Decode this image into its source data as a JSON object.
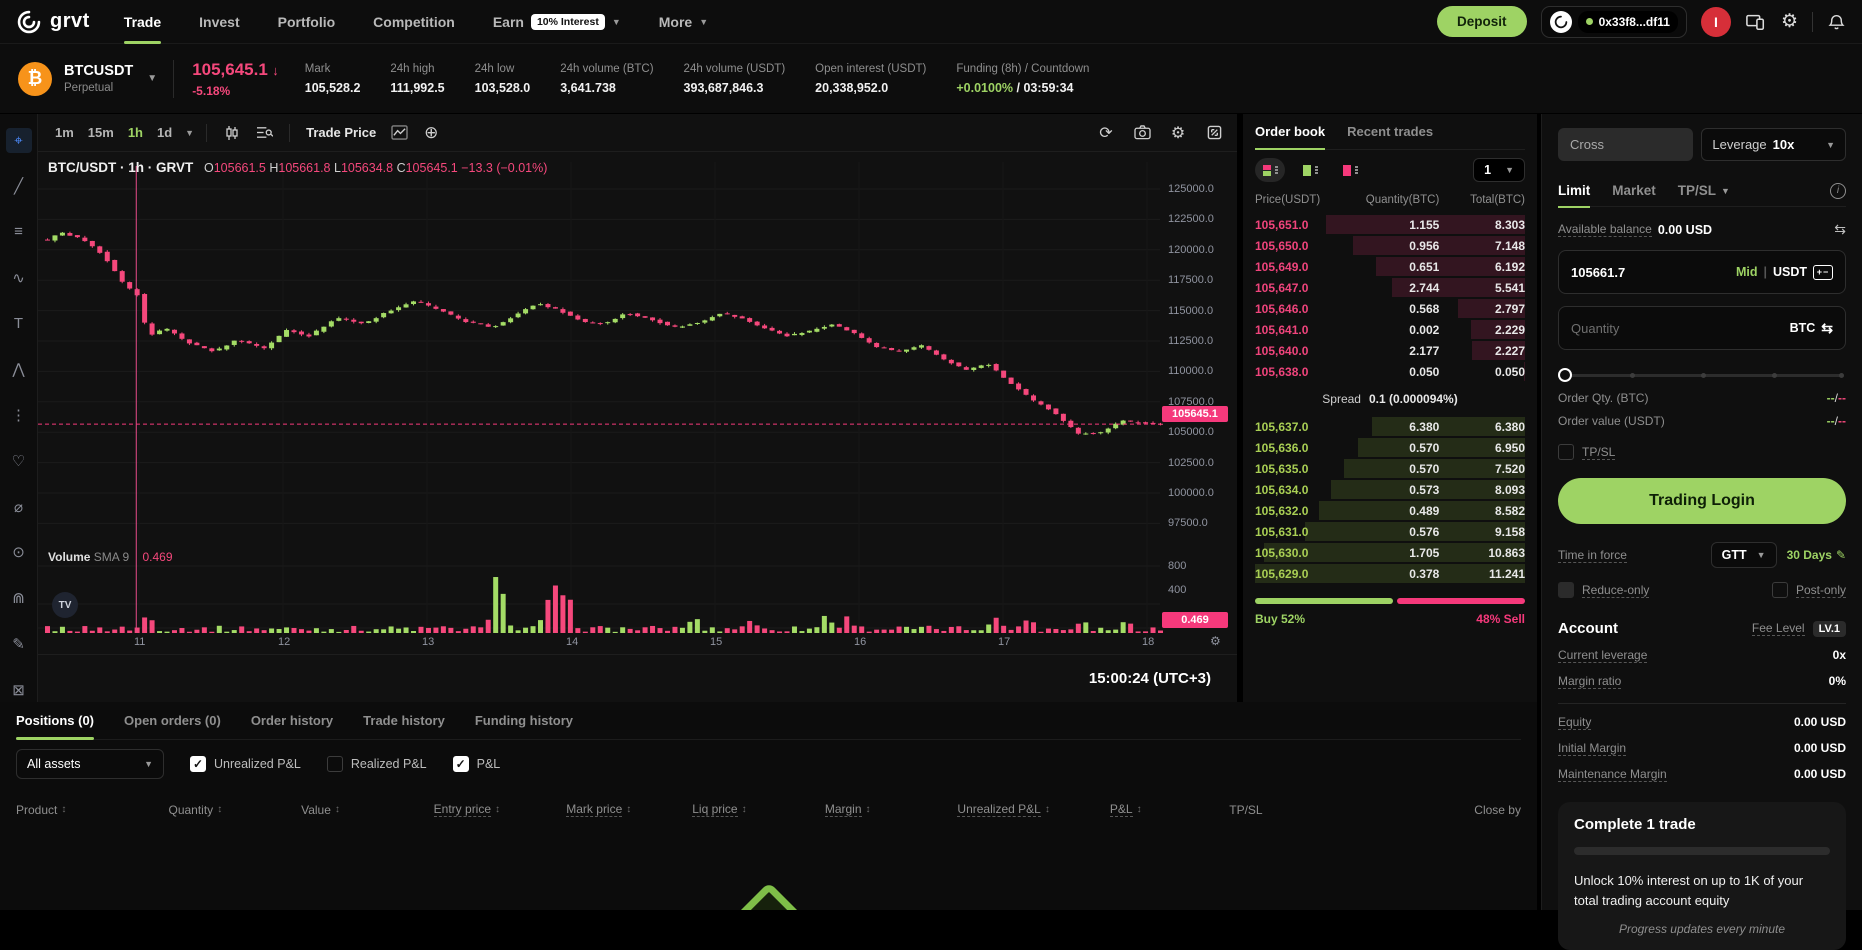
{
  "navbar": {
    "logo_text": "grvt",
    "items": [
      {
        "label": "Trade",
        "active": true
      },
      {
        "label": "Invest"
      },
      {
        "label": "Portfolio"
      },
      {
        "label": "Competition"
      },
      {
        "label": "Earn",
        "badge": "10% Interest",
        "chevron": true
      },
      {
        "label": "More",
        "chevron": true
      }
    ],
    "deposit_label": "Deposit",
    "wallet_address": "0x33f8...df11",
    "avatar_letter": "I"
  },
  "ticker": {
    "symbol": "BTCUSDT",
    "contract_type": "Perpetual",
    "last_price": "105,645.1",
    "price_direction": "↓",
    "change_pct": "-5.18%",
    "stats": [
      {
        "label": "Mark",
        "value": "105,528.2"
      },
      {
        "label": "24h high",
        "value": "111,992.5"
      },
      {
        "label": "24h low",
        "value": "103,528.0"
      },
      {
        "label": "24h volume (BTC)",
        "value": "3,641.738"
      },
      {
        "label": "24h volume (USDT)",
        "value": "393,687,846.3"
      },
      {
        "label": "Open interest (USDT)",
        "value": "20,338,952.0"
      },
      {
        "label": "Funding (8h) / Countdown",
        "value_green": "+0.0100%",
        "value_rest": " / 03:59:34"
      }
    ]
  },
  "drawing_tools": [
    {
      "name": "crosshair-tool",
      "glyph": "⌖",
      "active": true
    },
    {
      "name": "trendline-tool",
      "glyph": "╱"
    },
    {
      "name": "fib-tool",
      "glyph": "≡"
    },
    {
      "name": "wave-tool",
      "glyph": "∿"
    },
    {
      "name": "text-tool",
      "glyph": "T"
    },
    {
      "name": "pattern-tool",
      "glyph": "⋀"
    },
    {
      "name": "projection-tool",
      "glyph": "⋮"
    },
    {
      "name": "emoji-tool",
      "glyph": "♡"
    },
    {
      "name": "measure-tool",
      "glyph": "⌀"
    },
    {
      "name": "zoom-tool",
      "glyph": "⊙"
    },
    {
      "name": "magnet-tool",
      "glyph": "⋒"
    },
    {
      "name": "draw-tool",
      "glyph": "✎"
    },
    {
      "name": "lock-tool",
      "glyph": "⊠"
    }
  ],
  "chart": {
    "timeframes": [
      "1m",
      "15m",
      "1h",
      "1d"
    ],
    "active_timeframe": "1h",
    "trade_price_label": "Trade Price",
    "legend": {
      "title": "BTC/USDT · 1h · GRVT",
      "o_key": "O",
      "o": "105661.5",
      "h_key": "H",
      "h": "105661.8",
      "l_key": "L",
      "l": "105634.8",
      "c_key": "C",
      "c": "105645.1",
      "change": "−13.3 (−0.01%)"
    },
    "volume_label": "Volume",
    "sma_label": "SMA 9",
    "sma_value": "0.469",
    "price_axis": [
      "125000.0",
      "122500.0",
      "120000.0",
      "117500.0",
      "115000.0",
      "112500.0",
      "110000.0",
      "107500.0",
      "105000.0",
      "102500.0",
      "100000.0",
      "97500.0"
    ],
    "volume_axis": [
      "800",
      "400"
    ],
    "last_price_tag": "105645.1",
    "volume_tag": "0.469",
    "time_axis": [
      "11",
      "12",
      "13",
      "14",
      "15",
      "16",
      "17",
      "18"
    ],
    "clock": "15:00:24 (UTC+3)",
    "tv_logo": "TV",
    "chart_data": {
      "type": "candlestick+volume",
      "pair": "BTC/USDT",
      "interval": "1h",
      "y_range": [
        96500,
        126800
      ],
      "volume_range": [
        0,
        900
      ],
      "last_price": 105645.1,
      "marker_x": 0.082,
      "price_anchors": [
        [
          0,
          120800
        ],
        [
          0.012,
          121400
        ],
        [
          0.03,
          120900
        ],
        [
          0.05,
          119600
        ],
        [
          0.068,
          117200
        ],
        [
          0.082,
          116200
        ],
        [
          0.09,
          112800
        ],
        [
          0.105,
          113600
        ],
        [
          0.125,
          112400
        ],
        [
          0.15,
          111600
        ],
        [
          0.17,
          112600
        ],
        [
          0.195,
          111900
        ],
        [
          0.215,
          113400
        ],
        [
          0.235,
          112900
        ],
        [
          0.26,
          114400
        ],
        [
          0.285,
          113900
        ],
        [
          0.305,
          114900
        ],
        [
          0.33,
          115800
        ],
        [
          0.35,
          115100
        ],
        [
          0.375,
          114100
        ],
        [
          0.4,
          113600
        ],
        [
          0.42,
          114600
        ],
        [
          0.44,
          115600
        ],
        [
          0.46,
          115000
        ],
        [
          0.48,
          114100
        ],
        [
          0.5,
          113900
        ],
        [
          0.52,
          114800
        ],
        [
          0.54,
          114300
        ],
        [
          0.565,
          113600
        ],
        [
          0.585,
          114000
        ],
        [
          0.605,
          114800
        ],
        [
          0.625,
          114300
        ],
        [
          0.645,
          113500
        ],
        [
          0.665,
          112900
        ],
        [
          0.685,
          113300
        ],
        [
          0.705,
          113900
        ],
        [
          0.725,
          113100
        ],
        [
          0.745,
          112000
        ],
        [
          0.765,
          111600
        ],
        [
          0.785,
          112100
        ],
        [
          0.805,
          111000
        ],
        [
          0.825,
          110100
        ],
        [
          0.845,
          110600
        ],
        [
          0.865,
          109000
        ],
        [
          0.885,
          107600
        ],
        [
          0.905,
          106600
        ],
        [
          0.925,
          104900
        ],
        [
          0.945,
          104900
        ],
        [
          0.965,
          105900
        ],
        [
          1,
          105645
        ]
      ],
      "volume_spikes": [
        [
          0.405,
          760
        ],
        [
          0.45,
          300
        ],
        [
          0.458,
          410
        ],
        [
          0.468,
          330
        ],
        [
          0.09,
          160
        ],
        [
          0.58,
          130
        ],
        [
          0.63,
          110
        ],
        [
          0.7,
          170
        ],
        [
          0.72,
          140
        ],
        [
          0.85,
          150
        ],
        [
          0.88,
          130
        ],
        [
          0.93,
          110
        ],
        [
          0.97,
          90
        ]
      ]
    }
  },
  "orderbook": {
    "tabs": [
      {
        "label": "Order book",
        "active": true
      },
      {
        "label": "Recent trades"
      }
    ],
    "precision": "1",
    "columns": [
      "Price(USDT)",
      "Quantity(BTC)",
      "Total(BTC)"
    ],
    "max_total": 11.241,
    "asks": [
      {
        "price": "105,651.0",
        "qty": "1.155",
        "total": "8.303",
        "total_n": 8.303
      },
      {
        "price": "105,650.0",
        "qty": "0.956",
        "total": "7.148",
        "total_n": 7.148
      },
      {
        "price": "105,649.0",
        "qty": "0.651",
        "total": "6.192",
        "total_n": 6.192
      },
      {
        "price": "105,647.0",
        "qty": "2.744",
        "total": "5.541",
        "total_n": 5.541
      },
      {
        "price": "105,646.0",
        "qty": "0.568",
        "total": "2.797",
        "total_n": 2.797
      },
      {
        "price": "105,641.0",
        "qty": "0.002",
        "total": "2.229",
        "total_n": 2.229
      },
      {
        "price": "105,640.0",
        "qty": "2.177",
        "total": "2.227",
        "total_n": 2.227
      },
      {
        "price": "105,638.0",
        "qty": "0.050",
        "total": "0.050",
        "total_n": 0.05
      }
    ],
    "spread_label": "Spread",
    "spread_value": "0.1 (0.000094%)",
    "bids": [
      {
        "price": "105,637.0",
        "qty": "6.380",
        "total": "6.380",
        "total_n": 6.38
      },
      {
        "price": "105,636.0",
        "qty": "0.570",
        "total": "6.950",
        "total_n": 6.95
      },
      {
        "price": "105,635.0",
        "qty": "0.570",
        "total": "7.520",
        "total_n": 7.52
      },
      {
        "price": "105,634.0",
        "qty": "0.573",
        "total": "8.093",
        "total_n": 8.093
      },
      {
        "price": "105,632.0",
        "qty": "0.489",
        "total": "8.582",
        "total_n": 8.582
      },
      {
        "price": "105,631.0",
        "qty": "0.576",
        "total": "9.158",
        "total_n": 9.158
      },
      {
        "price": "105,630.0",
        "qty": "1.705",
        "total": "10.863",
        "total_n": 10.863
      },
      {
        "price": "105,629.0",
        "qty": "0.378",
        "total": "11.241",
        "total_n": 11.241
      }
    ],
    "buy_label": "Buy 52%",
    "sell_label": "48% Sell"
  },
  "trade_panel": {
    "margin_mode": "Cross",
    "leverage_label": "Leverage",
    "leverage_value": "10x",
    "tabs": [
      {
        "label": "Limit",
        "active": true
      },
      {
        "label": "Market"
      },
      {
        "label": "TP/SL",
        "chevron": true
      }
    ],
    "balance_label": "Available balance",
    "balance_value": "0.00 USD",
    "price_value": "105661.7",
    "mid_label": "Mid",
    "quote_currency": "USDT",
    "qty_placeholder": "Quantity",
    "base_currency": "BTC",
    "order_qty_label": "Order Qty. (BTC)",
    "order_value_label": "Order value (USDT)",
    "dash_left": "--",
    "dash_sep": "/",
    "dash_right": "--",
    "tpsl_label": "TP/SL",
    "login_label": "Trading Login",
    "tif_label": "Time in force",
    "tif_value": "GTT",
    "tif_days": "30 Days",
    "reduce_only_label": "Reduce-only",
    "post_only_label": "Post-only",
    "account": {
      "title": "Account",
      "fee_label": "Fee Level",
      "fee_badge": "LV.1",
      "rows_top": [
        {
          "label": "Current leverage",
          "value": "0x"
        },
        {
          "label": "Margin ratio",
          "value": "0%"
        }
      ],
      "rows_bottom": [
        {
          "label": "Equity",
          "value": "0.00 USD"
        },
        {
          "label": "Initial Margin",
          "value": "0.00 USD"
        },
        {
          "label": "Maintenance Margin",
          "value": "0.00 USD"
        }
      ]
    },
    "promo": {
      "title": "Complete 1 trade",
      "desc": "Unlock 10% interest on up to 1K of your total trading account equity",
      "note": "Progress updates every minute"
    }
  },
  "positions": {
    "tabs": [
      {
        "label": "Positions (0)",
        "active": true
      },
      {
        "label": "Open orders (0)"
      },
      {
        "label": "Order history"
      },
      {
        "label": "Trade history"
      },
      {
        "label": "Funding history"
      }
    ],
    "asset_filter": "All assets",
    "checkboxes": [
      {
        "label": "Unrealized P&L",
        "checked": true
      },
      {
        "label": "Realized P&L",
        "checked": false
      },
      {
        "label": "P&L",
        "checked": true
      }
    ],
    "columns": [
      {
        "label": "Product",
        "sortable": true,
        "flex": 1.15
      },
      {
        "label": "Quantity",
        "sortable": true,
        "flex": 1.0
      },
      {
        "label": "Value",
        "sortable": true,
        "flex": 1.0
      },
      {
        "label": "Entry price",
        "sortable": true,
        "dashed": true,
        "flex": 1.0
      },
      {
        "label": "Mark price",
        "sortable": true,
        "dashed": true,
        "flex": 0.95
      },
      {
        "label": "Liq price",
        "sortable": true,
        "dashed": true,
        "flex": 1.0
      },
      {
        "label": "Margin",
        "sortable": true,
        "dashed": true,
        "flex": 1.0
      },
      {
        "label": "Unrealized P&L",
        "sortable": true,
        "dashed": true,
        "flex": 1.15
      },
      {
        "label": "P&L",
        "sortable": true,
        "dashed": true,
        "flex": 0.9
      },
      {
        "label": "TP/SL",
        "flex": 1.3
      },
      {
        "label": "Close by",
        "flex": 0.9,
        "align": "right"
      }
    ]
  },
  "colors": {
    "accent_green": "#9ed364",
    "down_pink": "#f5487c",
    "up_green": "#a4dc66",
    "ask_depth": "rgba(242,54,122,0.16)",
    "bid_depth": "rgba(163,213,75,0.15)",
    "grid": "#1b1b1b",
    "axis_text": "#9094a0"
  }
}
